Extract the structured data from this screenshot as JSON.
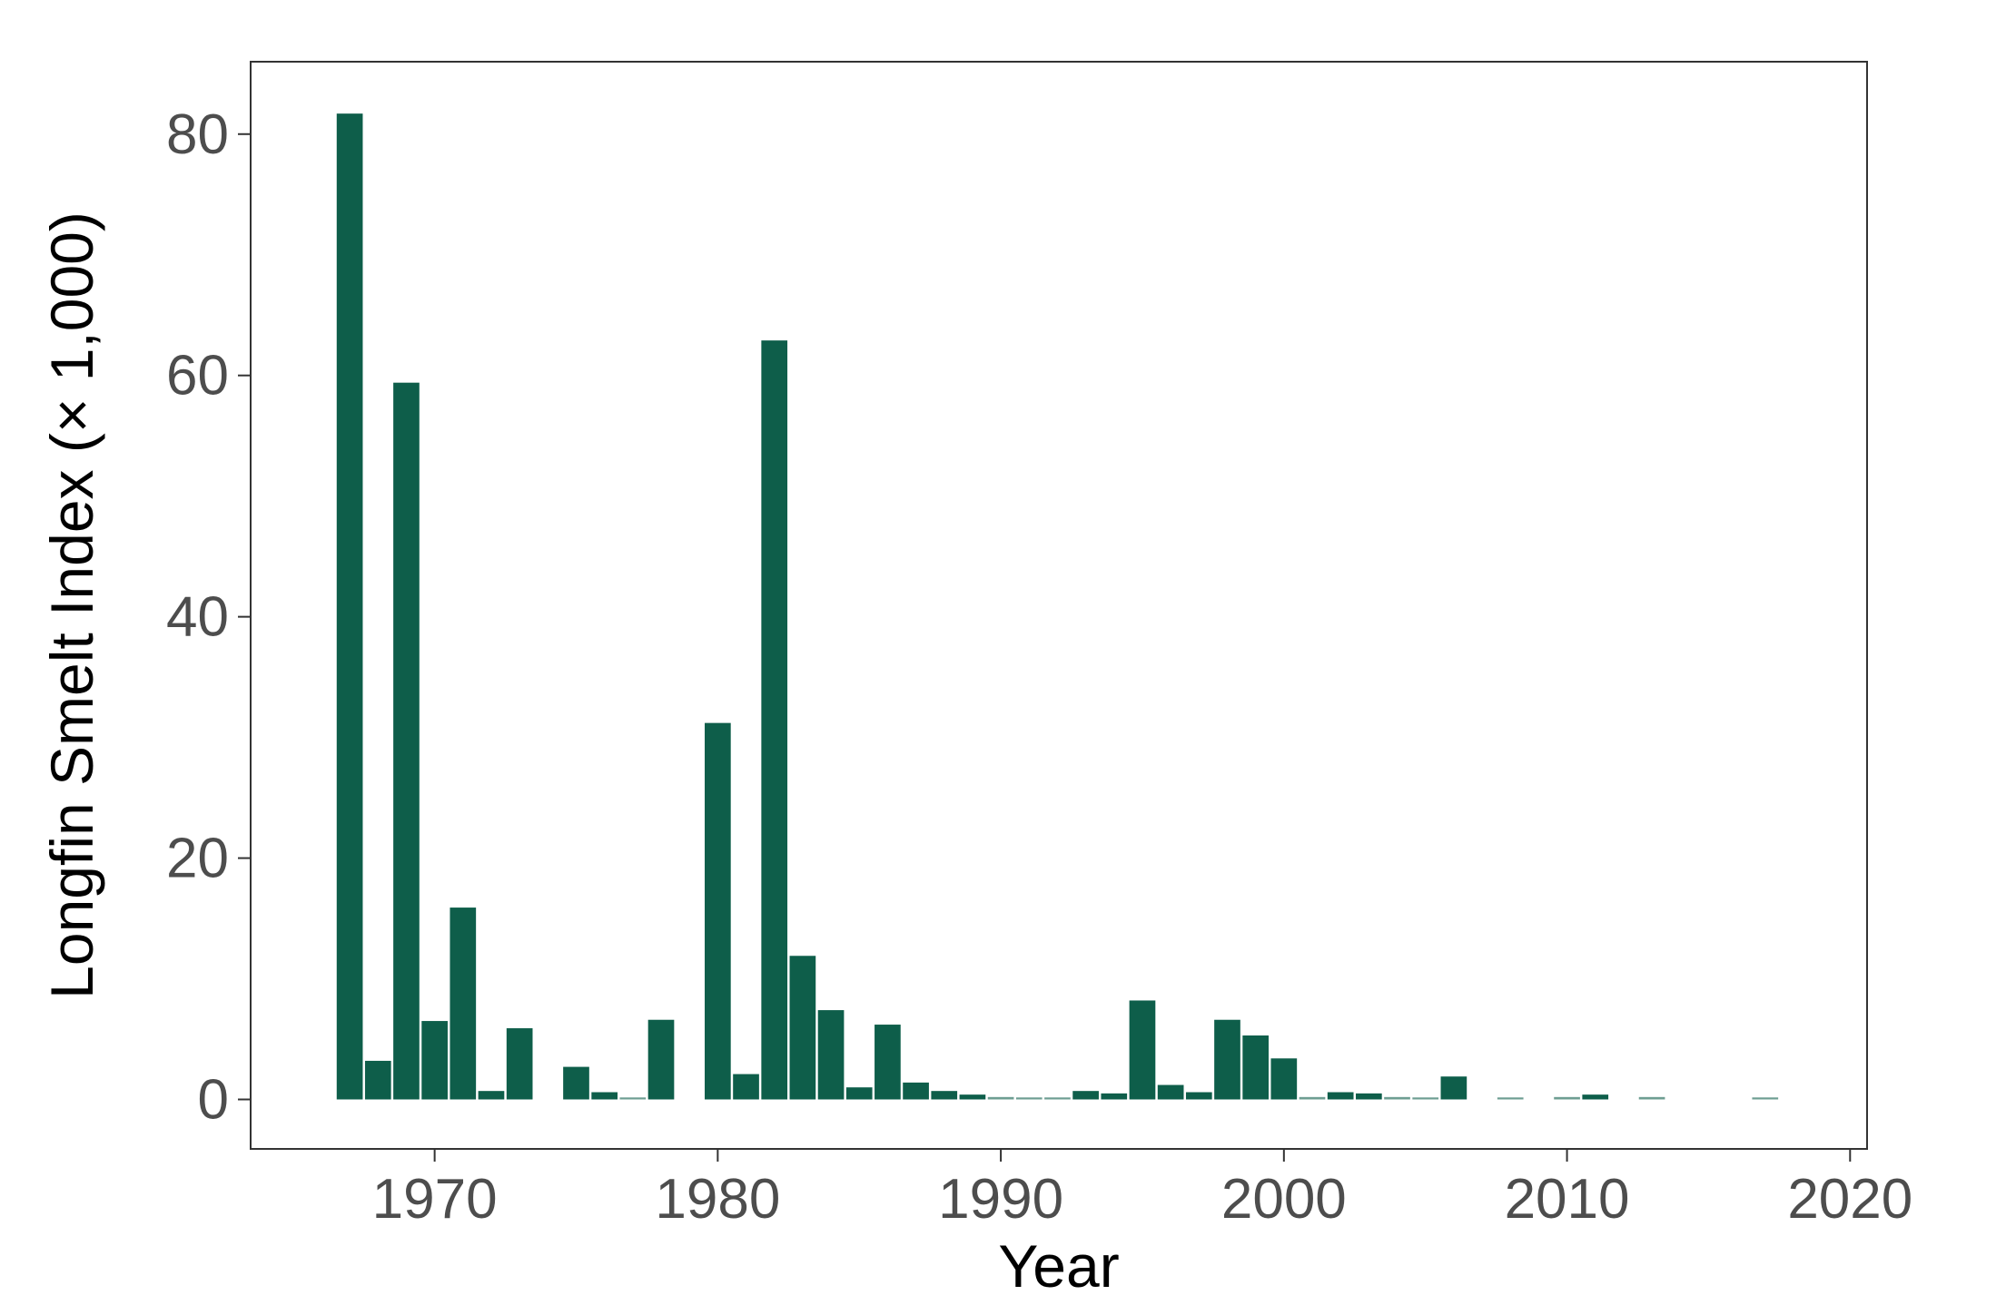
{
  "chart_data": {
    "type": "bar",
    "title": "",
    "xlabel": "Year",
    "ylabel": "Longfin Smelt Index (× 1,000)",
    "xlim": [
      1963.5,
      2020.6
    ],
    "ylim": [
      -4.1,
      86
    ],
    "x_ticks": [
      1970,
      1980,
      1990,
      2000,
      2010,
      2020
    ],
    "y_ticks": [
      0,
      20,
      40,
      60,
      80
    ],
    "grid": false,
    "legend": "none",
    "bar_color": "#0e5e4a",
    "x": [
      1967,
      1968,
      1969,
      1970,
      1971,
      1972,
      1973,
      1975,
      1976,
      1977,
      1978,
      1980,
      1981,
      1982,
      1983,
      1984,
      1985,
      1986,
      1987,
      1988,
      1989,
      1990,
      1991,
      1992,
      1993,
      1994,
      1995,
      1996,
      1997,
      1998,
      1999,
      2000,
      2001,
      2002,
      2003,
      2004,
      2005,
      2006,
      2008,
      2010,
      2011,
      2013,
      2017
    ],
    "values": [
      81.7,
      3.2,
      59.4,
      6.5,
      15.9,
      0.7,
      5.9,
      2.7,
      0.6,
      0.1,
      6.6,
      31.2,
      2.1,
      62.9,
      11.9,
      7.4,
      1.0,
      6.2,
      1.4,
      0.7,
      0.4,
      0.2,
      0.1,
      0.1,
      0.7,
      0.5,
      8.2,
      1.2,
      0.6,
      6.6,
      5.3,
      3.4,
      0.2,
      0.6,
      0.5,
      0.2,
      0.1,
      1.9,
      0.1,
      0.2,
      0.4,
      0.2,
      0.1
    ]
  }
}
